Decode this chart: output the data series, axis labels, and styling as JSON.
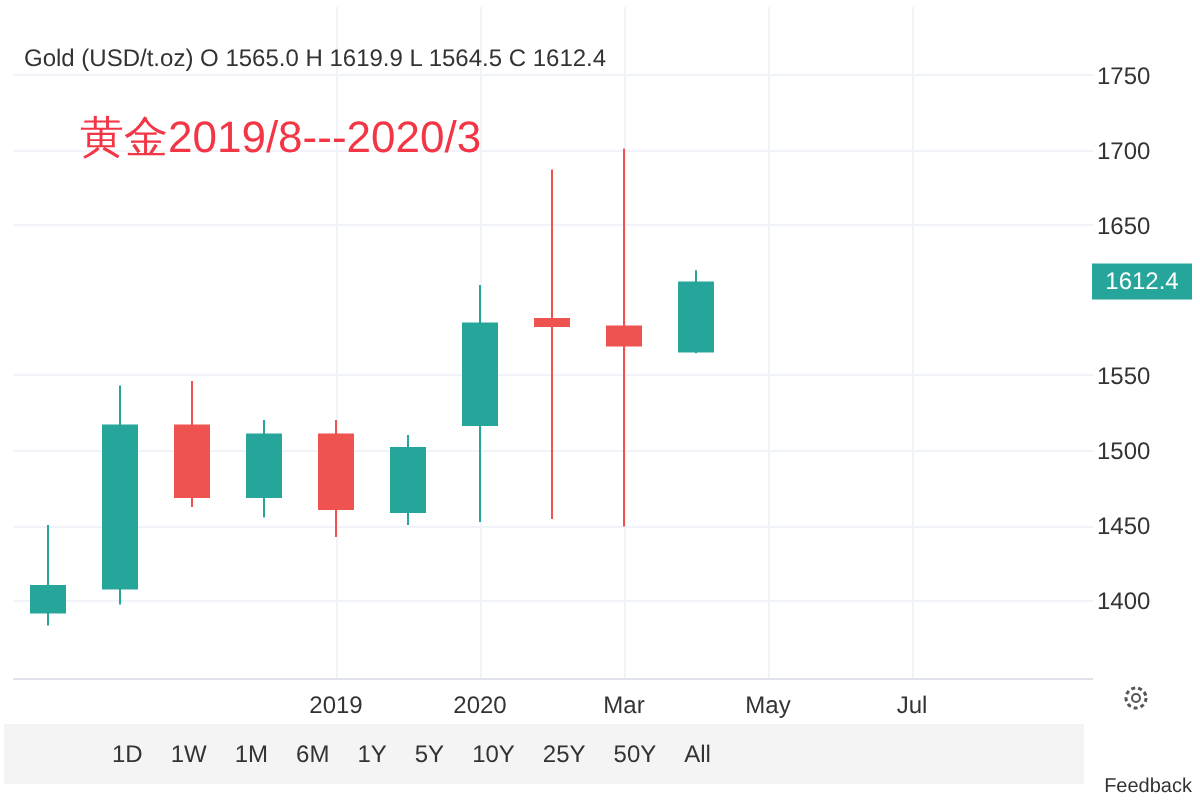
{
  "chart_data": {
    "type": "candlestick",
    "title": "黄金2019/8---2020/3",
    "annotations": [
      "Gold (USD/t.oz) O 1565.0 H 1619.9 L 1564.5 C 1612.4",
      "1612.4",
      "1D",
      "1W",
      "1M",
      "6M",
      "1Y",
      "5Y",
      "10Y",
      "25Y",
      "50Y",
      "All",
      "Feedback"
    ],
    "categories": [
      null,
      null,
      null,
      null,
      "2019",
      null,
      "2020",
      null,
      "Mar",
      null,
      "May",
      null,
      "Jul",
      null,
      null
    ],
    "ohlc": [
      [
        1391,
        1450,
        1383,
        1410
      ],
      [
        1407,
        1543,
        1397,
        1517
      ],
      [
        1517,
        1546,
        1462,
        1468
      ],
      [
        1468,
        1520,
        1455,
        1511
      ],
      [
        1511,
        1520,
        1442,
        1460
      ],
      [
        1458,
        1510,
        1450,
        1502
      ],
      [
        1516,
        1610,
        1452,
        1585
      ],
      [
        1588,
        1687,
        1454,
        1582
      ],
      [
        1583,
        1701,
        1449,
        1569
      ],
      [
        1565.0,
        1619.9,
        1564.5,
        1612.4
      ],
      null,
      null,
      null,
      null,
      null
    ],
    "colors": [
      "#26a69a",
      "#26a69a",
      "#ef5350",
      "#26a69a",
      "#ef5350",
      "#26a69a",
      "#26a69a",
      "#ef5350",
      "#ef5350",
      "#26a69a",
      null,
      null,
      null,
      null,
      null
    ],
    "ylim": [
      1348,
      1796
    ],
    "yticks": [
      1400,
      1450,
      1500,
      1550,
      1650,
      1700,
      1750
    ],
    "grid": true
  }
}
